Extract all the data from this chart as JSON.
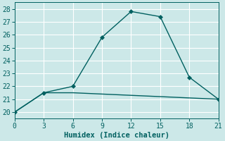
{
  "xlabel": "Humidex (Indice chaleur)",
  "line1_x": [
    0,
    3,
    6,
    9,
    12,
    15,
    18,
    21
  ],
  "line1_y": [
    20,
    21.5,
    22.0,
    25.8,
    27.8,
    27.4,
    22.7,
    21.0
  ],
  "line2_x": [
    0,
    3,
    6,
    9,
    12,
    15,
    18,
    21
  ],
  "line2_y": [
    20,
    21.5,
    21.5,
    21.4,
    21.3,
    21.2,
    21.1,
    21.0
  ],
  "line_color": "#006060",
  "bg_color": "#cce8e8",
  "grid_color": "#ffffff",
  "text_color": "#006060",
  "xlim": [
    0,
    21
  ],
  "ylim": [
    19.5,
    28.5
  ],
  "xticks": [
    0,
    3,
    6,
    9,
    12,
    15,
    18,
    21
  ],
  "yticks": [
    20,
    21,
    22,
    23,
    24,
    25,
    26,
    27,
    28
  ],
  "markersize": 3.0,
  "linewidth": 1.0,
  "tick_fontsize": 7,
  "label_fontsize": 7.5
}
